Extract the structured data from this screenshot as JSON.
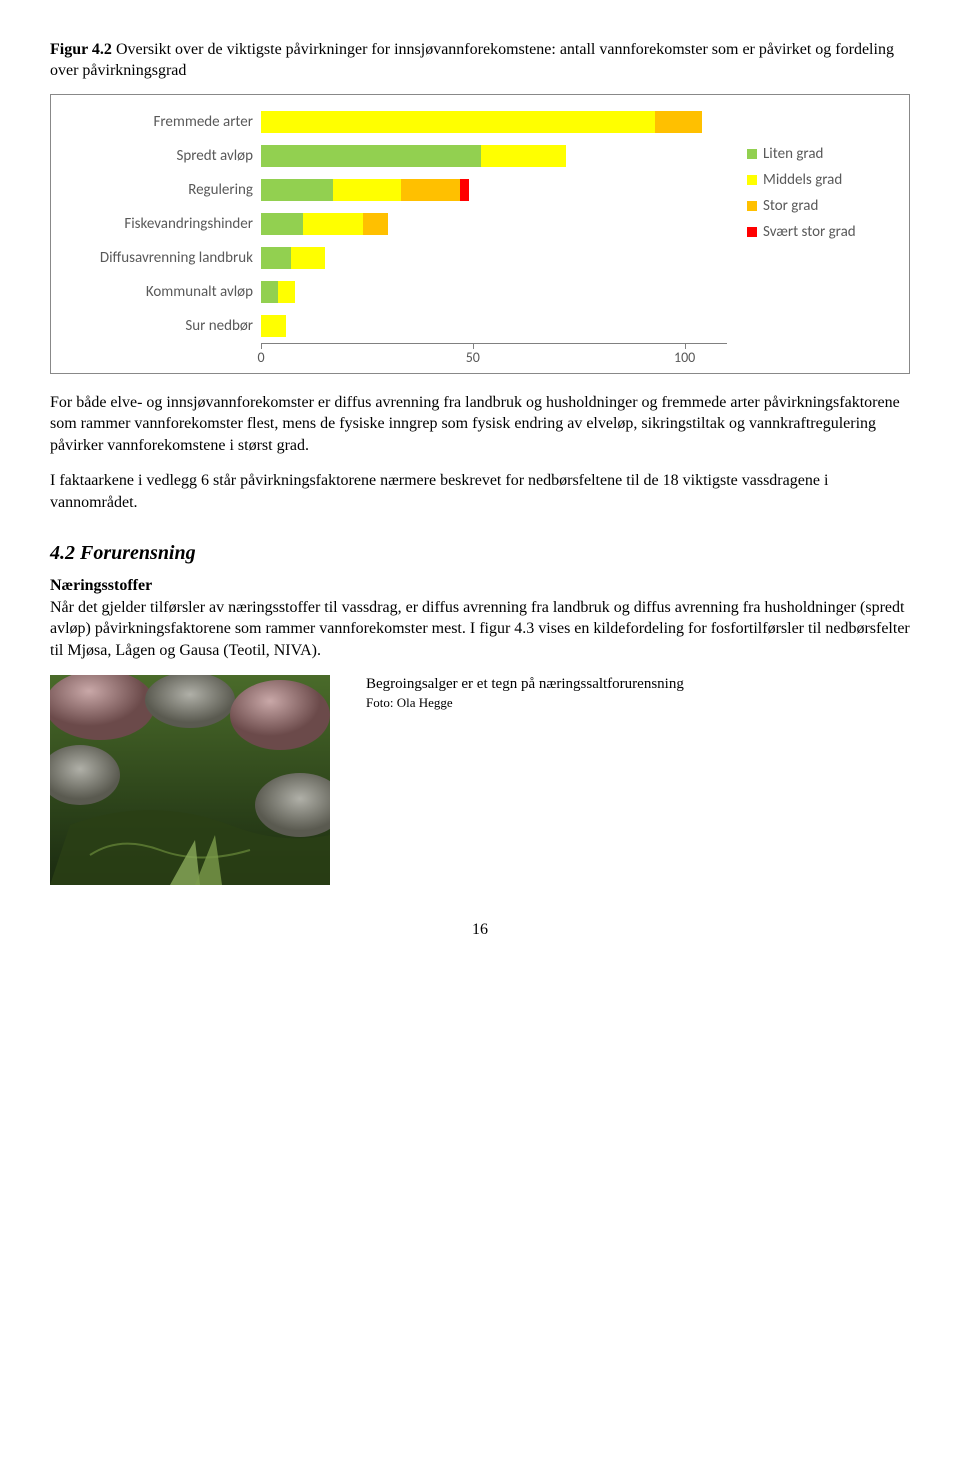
{
  "figure_caption": {
    "label": "Figur 4.2",
    "text": " Oversikt over de viktigste påvirkninger for innsjøvannforekomstene: antall vannforekomster som er påvirket og fordeling over påvirkningsgrad"
  },
  "chart": {
    "type": "stacked-bar-horizontal",
    "xmax": 110,
    "xticks": [
      0,
      50,
      100
    ],
    "categories": [
      "Fremmede arter",
      "Spredt avløp",
      "Regulering",
      "Fiskevandringshinder",
      "Diffusavrenning landbruk",
      "Kommunalt avløp",
      "Sur nedbør"
    ],
    "series": [
      {
        "label": "Liten grad",
        "color": "#92d050"
      },
      {
        "label": "Middels grad",
        "color": "#ffff00"
      },
      {
        "label": "Stor grad",
        "color": "#ffc000"
      },
      {
        "label": "Svært stor grad",
        "color": "#ff0000"
      }
    ],
    "data": [
      [
        0,
        93,
        11,
        0
      ],
      [
        52,
        20,
        0,
        0
      ],
      [
        17,
        16,
        14,
        2
      ],
      [
        10,
        14,
        6,
        0
      ],
      [
        7,
        8,
        0,
        0
      ],
      [
        4,
        4,
        0,
        0
      ],
      [
        0,
        6,
        0,
        0
      ]
    ],
    "label_color": "#595959",
    "tickline_color": "#808080",
    "background_color": "#ffffff"
  },
  "para1": "For både elve- og innsjøvannforekomster er diffus avrenning fra landbruk og husholdninger og fremmede arter påvirkningsfaktorene som rammer vannforekomster flest, mens de fysiske inngrep som fysisk endring av elveløp, sikringstiltak og vannkraftregulering påvirker vannforekomstene i størst grad.",
  "para2": "I faktaarkene i vedlegg 6 står påvirkningsfaktorene nærmere beskrevet for nedbørsfeltene til de 18 viktigste vassdragene i vannområdet.",
  "section_heading": "4.2  Forurensning",
  "sub_heading": "Næringsstoffer",
  "para3": "Når det gjelder tilførsler av næringsstoffer til vassdrag, er diffus avrenning fra landbruk og diffus avrenning fra husholdninger (spredt avløp) påvirkningsfaktorene som rammer vannforekomster mest. I figur 4.3 vises en kildefordeling for fosfortilførsler til nedbørsfelter til Mjøsa, Lågen og Gausa (Teotil, NIVA).",
  "photo_caption": {
    "line1": "Begroingsalger er et tegn på næringssaltforurensning",
    "line2": "Foto: Ola Hegge"
  },
  "page_number": "16"
}
